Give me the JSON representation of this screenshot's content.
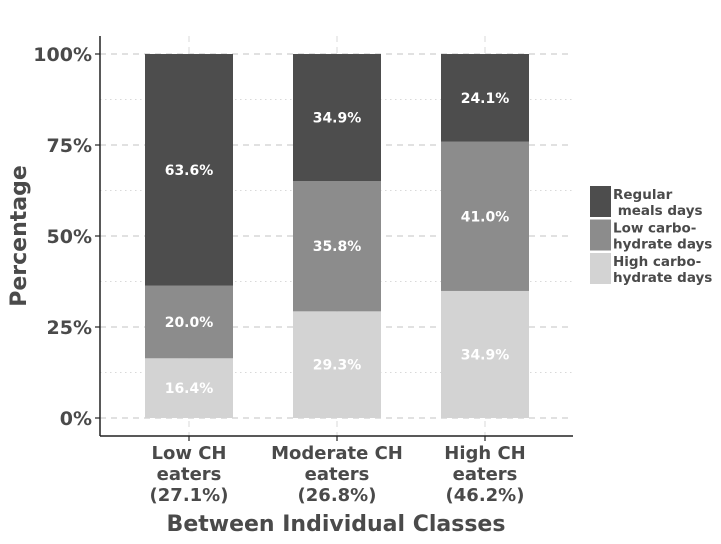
{
  "chart_data": {
    "type": "bar",
    "stacked": true,
    "xlabel": "Between Individual Classes",
    "ylabel": "Percentage",
    "ylim": [
      0,
      100
    ],
    "yticks": [
      "0%",
      "25%",
      "50%",
      "75%",
      "100%"
    ],
    "categories": [
      [
        "Low CH",
        "eaters",
        "(27.1%)"
      ],
      [
        "Moderate CH",
        "eaters",
        "(26.8%)"
      ],
      [
        "High CH",
        "eaters",
        "(46.2%)"
      ]
    ],
    "series": [
      {
        "name": "High carbo-\nhydrate days",
        "legend_lines": [
          "High carbo-",
          "hydrate days"
        ],
        "color": "#d3d3d3",
        "values": [
          16.4,
          29.3,
          34.9
        ],
        "labels": [
          "16.4%",
          "29.3%",
          "34.9%"
        ]
      },
      {
        "name": "Low carbo-\nhydrate days",
        "legend_lines": [
          "Low carbo-",
          "hydrate days"
        ],
        "color": "#8c8c8c",
        "values": [
          20.0,
          35.8,
          41.0
        ],
        "labels": [
          "20.0%",
          "35.8%",
          "41.0%"
        ]
      },
      {
        "name": "Regular\n meals days",
        "legend_lines": [
          "Regular",
          " meals days"
        ],
        "color": "#4d4d4d",
        "values": [
          63.6,
          34.9,
          24.1
        ],
        "labels": [
          "63.6%",
          "34.9%",
          "24.1%"
        ]
      }
    ],
    "legend_position": "right",
    "grid": true
  }
}
